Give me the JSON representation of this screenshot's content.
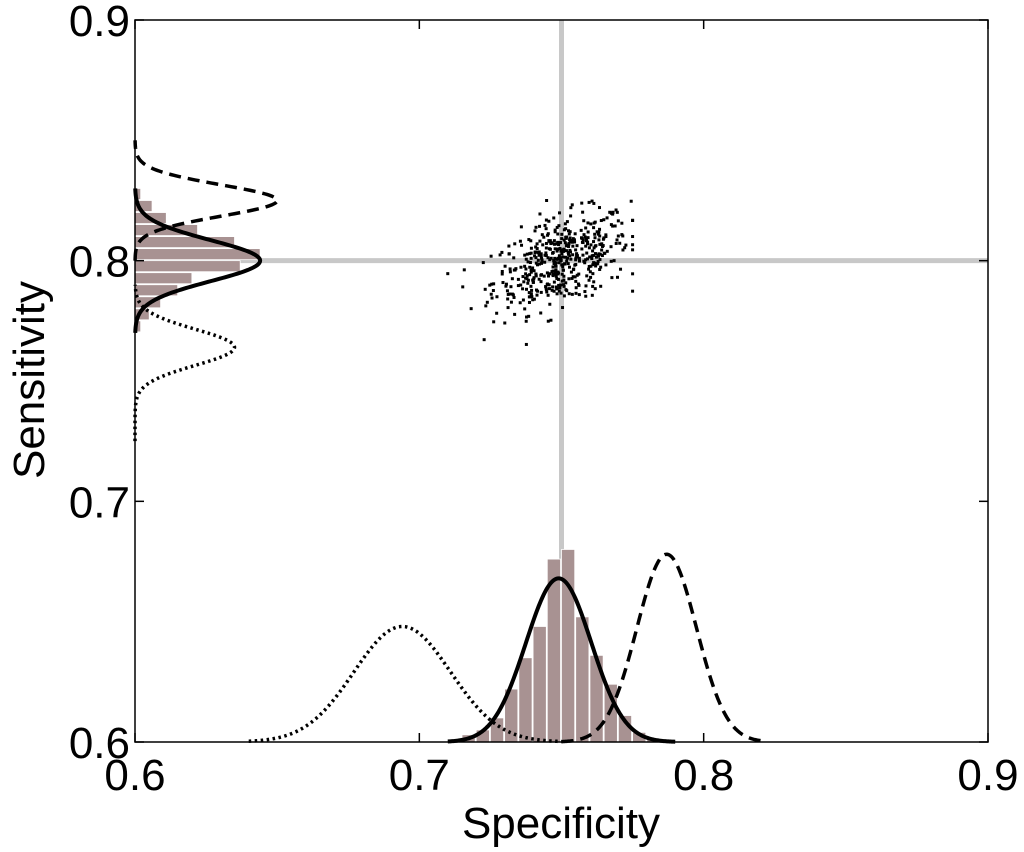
{
  "chart_data": {
    "type": "scatter",
    "title": "",
    "xlabel": "Specificity",
    "ylabel": "Sensitivity",
    "xlim": [
      0.6,
      0.9
    ],
    "ylim": [
      0.6,
      0.9
    ],
    "xticks": [
      "0.6",
      "0.7",
      "0.8",
      "0.9"
    ],
    "yticks": [
      "0.6",
      "0.7",
      "0.8",
      "0.9"
    ],
    "grid": false,
    "reference_lines": {
      "specificity": 0.75,
      "sensitivity": 0.8
    },
    "reference_line_color": "#c8c8c8",
    "histogram_color": "#a89292",
    "curve_color": "#000000",
    "point_color": "#000000",
    "scatter": {
      "center": [
        0.75,
        0.8
      ],
      "sd": [
        0.012,
        0.01
      ],
      "count": 500,
      "x_range": [
        0.71,
        0.775
      ],
      "y_range": [
        0.765,
        0.825
      ]
    },
    "specificity_histogram": {
      "bins": [
        0.71,
        0.715,
        0.72,
        0.725,
        0.73,
        0.735,
        0.74,
        0.745,
        0.75,
        0.755,
        0.76,
        0.765,
        0.77,
        0.775,
        0.78
      ],
      "heights": [
        0.001,
        0.003,
        0.005,
        0.01,
        0.022,
        0.035,
        0.048,
        0.076,
        0.08,
        0.052,
        0.036,
        0.024,
        0.011,
        0.004,
        0.001
      ]
    },
    "sensitivity_histogram": {
      "bins": [
        0.77,
        0.775,
        0.78,
        0.785,
        0.79,
        0.795,
        0.8,
        0.805,
        0.81,
        0.815,
        0.82,
        0.825
      ],
      "widths": [
        0.002,
        0.005,
        0.009,
        0.015,
        0.02,
        0.037,
        0.044,
        0.035,
        0.022,
        0.011,
        0.006,
        0.002
      ]
    },
    "specificity_curves": [
      {
        "style": "solid",
        "mean": 0.749,
        "sd": 0.0115,
        "peak": 0.068,
        "range": [
          0.71,
          0.79
        ]
      },
      {
        "style": "dashed",
        "mean": 0.787,
        "sd": 0.0105,
        "peak": 0.078,
        "range": [
          0.75,
          0.82
        ]
      },
      {
        "style": "dotted",
        "mean": 0.694,
        "sd": 0.017,
        "peak": 0.048,
        "range": [
          0.64,
          0.75
        ]
      }
    ],
    "sensitivity_curves": [
      {
        "style": "solid",
        "mean": 0.8,
        "sd": 0.0085,
        "peak": 0.044,
        "range": [
          0.77,
          0.83
        ]
      },
      {
        "style": "dashed",
        "mean": 0.825,
        "sd": 0.0065,
        "peak": 0.05,
        "range": [
          0.8,
          0.85
        ]
      },
      {
        "style": "dotted",
        "mean": 0.764,
        "sd": 0.0075,
        "peak": 0.035,
        "range": [
          0.725,
          0.79
        ]
      }
    ]
  }
}
